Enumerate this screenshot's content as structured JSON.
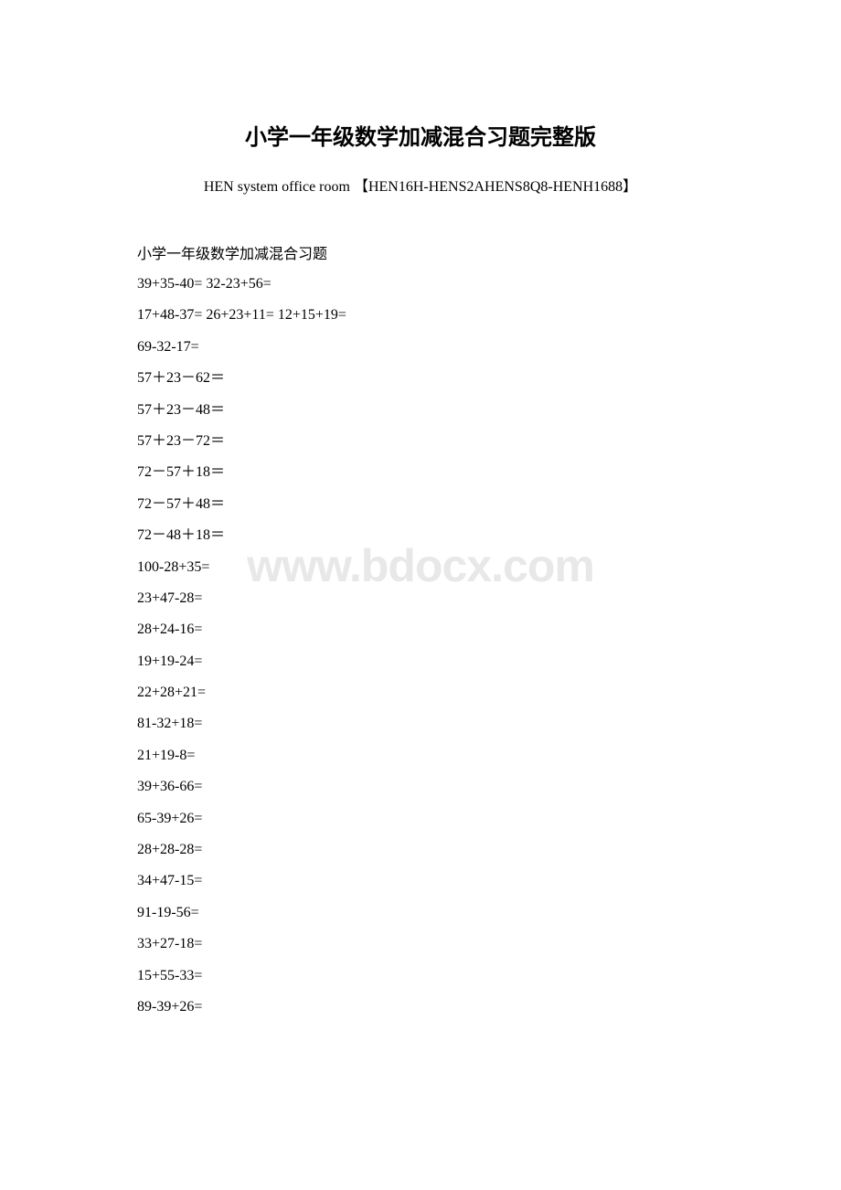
{
  "document": {
    "title": "小学一年级数学加减混合习题完整版",
    "subtitle": "HEN system office room 【HEN16H-HENS2AHENS8Q8-HENH1688】",
    "section_heading": "小学一年级数学加减混合习题",
    "watermark": "www.bdocx.com",
    "equations": [
      "39+35-40= 32-23+56=",
      "17+48-37= 26+23+11= 12+15+19=",
      "69-32-17=",
      "57＋23－62＝",
      "57＋23－48＝",
      "57＋23－72＝",
      "72－57＋18＝",
      "72－57＋48＝",
      "72－48＋18＝",
      "100-28+35=",
      "23+47-28=",
      "28+24-16=",
      "19+19-24=",
      "22+28+21=",
      " 81-32+18=",
      " 21+19-8=",
      "39+36-66=",
      "65-39+26=",
      "28+28-28=",
      "34+47-15=",
      "91-19-56=",
      "33+27-18=",
      "15+55-33=",
      "89-39+26="
    ],
    "styles": {
      "background_color": "#ffffff",
      "text_color": "#000000",
      "watermark_color": "#e8e8e8",
      "title_fontsize": 24,
      "subtitle_fontsize": 16,
      "body_fontsize": 16,
      "watermark_fontsize": 50
    }
  }
}
